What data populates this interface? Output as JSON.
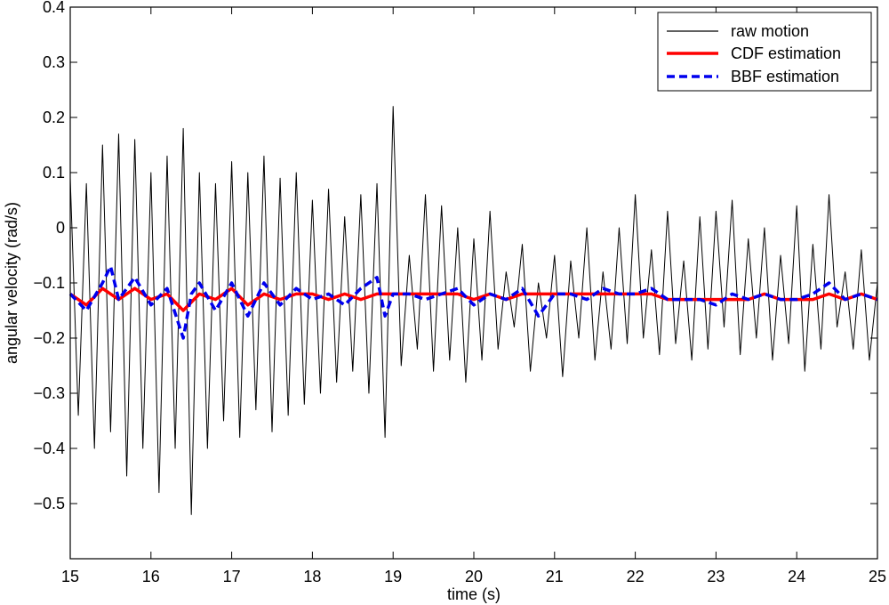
{
  "chart_data": {
    "type": "line",
    "title": "",
    "xlabel": "time (s)",
    "ylabel": "angular velocity (rad/s)",
    "xlim": [
      15,
      25
    ],
    "ylim": [
      -0.6,
      0.4
    ],
    "xticks": [
      "15",
      "16",
      "17",
      "18",
      "19",
      "20",
      "21",
      "22",
      "23",
      "24",
      "25"
    ],
    "yticks": [
      "0.4",
      "0.3",
      "0.2",
      "0.1",
      "0",
      "−0.1",
      "−0.2",
      "−0.3",
      "−0.4",
      "−0.5"
    ],
    "grid": false,
    "legend_position": "top-right",
    "series": [
      {
        "name": "raw motion",
        "color": "#000000",
        "style": "solid",
        "x": [
          15.0,
          15.1,
          15.2,
          15.3,
          15.4,
          15.5,
          15.6,
          15.7,
          15.8,
          15.9,
          16.0,
          16.1,
          16.2,
          16.3,
          16.4,
          16.5,
          16.6,
          16.7,
          16.8,
          16.9,
          17.0,
          17.1,
          17.2,
          17.3,
          17.4,
          17.5,
          17.6,
          17.7,
          17.8,
          17.9,
          18.0,
          18.1,
          18.2,
          18.3,
          18.4,
          18.5,
          18.6,
          18.7,
          18.8,
          18.9,
          19.0,
          19.1,
          19.2,
          19.3,
          19.4,
          19.5,
          19.6,
          19.7,
          19.8,
          19.9,
          20.0,
          20.1,
          20.2,
          20.3,
          20.4,
          20.5,
          20.6,
          20.7,
          20.8,
          20.9,
          21.0,
          21.1,
          21.2,
          21.3,
          21.4,
          21.5,
          21.6,
          21.7,
          21.8,
          21.9,
          22.0,
          22.1,
          22.2,
          22.3,
          22.4,
          22.5,
          22.6,
          22.7,
          22.8,
          22.9,
          23.0,
          23.1,
          23.2,
          23.3,
          23.4,
          23.5,
          23.6,
          23.7,
          23.8,
          23.9,
          24.0,
          24.1,
          24.2,
          24.3,
          24.4,
          24.5,
          24.6,
          24.7,
          24.8,
          24.9,
          25.0
        ],
        "y": [
          0.09,
          -0.34,
          0.08,
          -0.4,
          0.15,
          -0.37,
          0.17,
          -0.45,
          0.16,
          -0.4,
          0.1,
          -0.48,
          0.13,
          -0.4,
          0.18,
          -0.52,
          0.1,
          -0.4,
          0.08,
          -0.35,
          0.12,
          -0.38,
          0.1,
          -0.33,
          0.13,
          -0.37,
          0.09,
          -0.34,
          0.1,
          -0.32,
          0.05,
          -0.3,
          0.07,
          -0.28,
          0.02,
          -0.26,
          0.06,
          -0.3,
          0.08,
          -0.38,
          0.22,
          -0.25,
          -0.05,
          -0.22,
          0.06,
          -0.26,
          0.04,
          -0.24,
          0.0,
          -0.28,
          -0.02,
          -0.24,
          0.03,
          -0.22,
          -0.08,
          -0.18,
          -0.03,
          -0.26,
          -0.1,
          -0.2,
          -0.05,
          -0.27,
          -0.06,
          -0.2,
          0.0,
          -0.24,
          -0.08,
          -0.22,
          0.0,
          -0.21,
          0.06,
          -0.2,
          -0.04,
          -0.23,
          0.03,
          -0.21,
          -0.06,
          -0.24,
          0.02,
          -0.22,
          0.03,
          -0.18,
          0.05,
          -0.23,
          -0.02,
          -0.2,
          0.0,
          -0.24,
          -0.05,
          -0.21,
          0.04,
          -0.26,
          -0.03,
          -0.22,
          0.06,
          -0.18,
          -0.08,
          -0.22,
          -0.04,
          -0.24,
          -0.1
        ]
      },
      {
        "name": "CDF estimation",
        "color": "#ff0000",
        "style": "solid",
        "x": [
          15.0,
          15.2,
          15.4,
          15.6,
          15.8,
          16.0,
          16.2,
          16.4,
          16.6,
          16.8,
          17.0,
          17.2,
          17.4,
          17.6,
          17.8,
          18.0,
          18.2,
          18.4,
          18.6,
          18.8,
          19.0,
          19.2,
          19.4,
          19.6,
          19.8,
          20.0,
          20.2,
          20.4,
          20.6,
          20.8,
          21.0,
          21.2,
          21.4,
          21.6,
          21.8,
          22.0,
          22.2,
          22.4,
          22.6,
          22.8,
          23.0,
          23.2,
          23.4,
          23.6,
          23.8,
          24.0,
          24.2,
          24.4,
          24.6,
          24.8,
          25.0
        ],
        "y": [
          -0.12,
          -0.14,
          -0.11,
          -0.13,
          -0.11,
          -0.13,
          -0.12,
          -0.15,
          -0.12,
          -0.13,
          -0.11,
          -0.14,
          -0.12,
          -0.13,
          -0.12,
          -0.12,
          -0.13,
          -0.12,
          -0.13,
          -0.12,
          -0.12,
          -0.12,
          -0.12,
          -0.12,
          -0.12,
          -0.13,
          -0.12,
          -0.13,
          -0.12,
          -0.12,
          -0.12,
          -0.12,
          -0.12,
          -0.12,
          -0.12,
          -0.12,
          -0.12,
          -0.13,
          -0.13,
          -0.13,
          -0.13,
          -0.13,
          -0.13,
          -0.12,
          -0.13,
          -0.13,
          -0.13,
          -0.12,
          -0.13,
          -0.12,
          -0.13
        ]
      },
      {
        "name": "BBF estimation",
        "color": "#0000ee",
        "style": "dashed",
        "x": [
          15.0,
          15.2,
          15.4,
          15.5,
          15.6,
          15.8,
          16.0,
          16.2,
          16.4,
          16.5,
          16.6,
          16.8,
          17.0,
          17.2,
          17.4,
          17.6,
          17.8,
          18.0,
          18.2,
          18.4,
          18.6,
          18.8,
          18.9,
          19.0,
          19.2,
          19.4,
          19.6,
          19.8,
          20.0,
          20.2,
          20.4,
          20.6,
          20.8,
          21.0,
          21.2,
          21.4,
          21.6,
          21.8,
          22.0,
          22.2,
          22.4,
          22.6,
          22.8,
          23.0,
          23.2,
          23.4,
          23.6,
          23.8,
          24.0,
          24.2,
          24.4,
          24.6,
          24.8,
          25.0
        ],
        "y": [
          -0.12,
          -0.15,
          -0.1,
          -0.07,
          -0.13,
          -0.09,
          -0.14,
          -0.11,
          -0.2,
          -0.12,
          -0.1,
          -0.15,
          -0.1,
          -0.16,
          -0.1,
          -0.14,
          -0.11,
          -0.13,
          -0.12,
          -0.14,
          -0.11,
          -0.09,
          -0.16,
          -0.12,
          -0.12,
          -0.13,
          -0.12,
          -0.11,
          -0.14,
          -0.12,
          -0.13,
          -0.11,
          -0.16,
          -0.12,
          -0.12,
          -0.13,
          -0.11,
          -0.12,
          -0.12,
          -0.11,
          -0.13,
          -0.13,
          -0.13,
          -0.14,
          -0.12,
          -0.13,
          -0.12,
          -0.13,
          -0.13,
          -0.12,
          -0.1,
          -0.13,
          -0.12,
          -0.13
        ]
      }
    ]
  }
}
